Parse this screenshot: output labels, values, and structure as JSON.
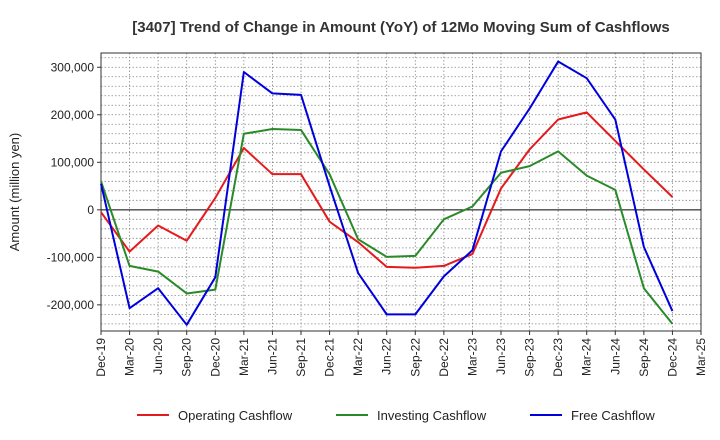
{
  "chart_data": {
    "type": "line",
    "title": "[3407]  Trend of Change in Amount (YoY) of 12Mo Moving Sum of Cashflows",
    "xlabel": "",
    "ylabel": "Amount (million yen)",
    "ylim": [
      -255000,
      330000
    ],
    "yticks": [
      300000,
      200000,
      100000,
      0,
      -100000,
      -200000
    ],
    "ytick_labels": [
      "300,000",
      "200,000",
      "100,000",
      "0",
      "-100,000",
      "-200,000"
    ],
    "categories": [
      "Dec-19",
      "Mar-20",
      "Jun-20",
      "Sep-20",
      "Dec-20",
      "Mar-21",
      "Jun-21",
      "Sep-21",
      "Dec-21",
      "Mar-22",
      "Jun-22",
      "Sep-22",
      "Dec-22",
      "Mar-23",
      "Jun-23",
      "Sep-23",
      "Dec-23",
      "Mar-24",
      "Jun-24",
      "Sep-24",
      "Dec-24",
      "Mar-25"
    ],
    "grid": true,
    "legend_position": "bottom",
    "series": [
      {
        "name": "Operating Cashflow",
        "color": "#e41a1c",
        "values": [
          -5000,
          -88000,
          -33000,
          -65000,
          25000,
          130000,
          75000,
          75000,
          -25000,
          -68000,
          -120000,
          -122000,
          -118000,
          -93000,
          45000,
          127000,
          190000,
          205000,
          145000,
          85000,
          27000,
          null
        ]
      },
      {
        "name": "Investing Cashflow",
        "color": "#2a8a2a",
        "values": [
          60000,
          -118000,
          -130000,
          -176000,
          -168000,
          160000,
          170000,
          168000,
          75000,
          -62000,
          -99000,
          -97000,
          -20000,
          7000,
          78000,
          92000,
          123000,
          72000,
          42000,
          -165000,
          -240000,
          null
        ]
      },
      {
        "name": "Free Cashflow",
        "color": "#0000dd",
        "values": [
          55000,
          -207000,
          -165000,
          -242000,
          -142000,
          290000,
          245000,
          242000,
          50000,
          -133000,
          -220000,
          -220000,
          -140000,
          -85000,
          123000,
          213000,
          312000,
          277000,
          190000,
          -78000,
          -213000,
          null
        ]
      }
    ]
  }
}
